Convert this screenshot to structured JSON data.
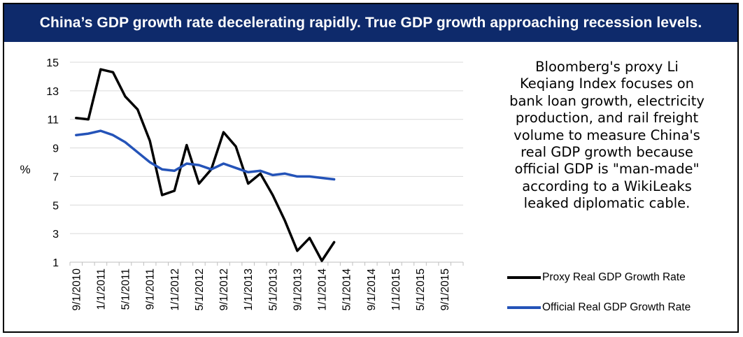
{
  "title": "China’s GDP growth rate decelerating rapidly. True GDP growth approaching recession levels.",
  "colors": {
    "title_background": "#0e2a6b",
    "proxy_line": "#000000",
    "official_line": "#2453b8",
    "gridline": "#d9d9d9"
  },
  "note": "Bloomberg's proxy Li Keqiang Index focuses on bank loan growth, electricity production, and rail freight volume to measure China's real GDP growth because official GDP is \"man-made\" according to a WikiLeaks leaked diplomatic cable.",
  "chart_data": {
    "type": "line",
    "title": "China’s GDP growth rate decelerating rapidly. True GDP growth approaching recession levels.",
    "ylabel": "%",
    "xlabel": "",
    "ylim": [
      1,
      15
    ],
    "yticks": [
      1,
      3,
      5,
      7,
      9,
      11,
      13,
      15
    ],
    "grid": true,
    "legend_position": "right",
    "x": [
      "9/1/2010",
      "11/1/2010",
      "1/1/2011",
      "3/1/2011",
      "5/1/2011",
      "7/1/2011",
      "9/1/2011",
      "11/1/2011",
      "1/1/2012",
      "3/1/2012",
      "5/1/2012",
      "7/1/2012",
      "9/1/2012",
      "11/1/2012",
      "1/1/2013",
      "3/1/2013",
      "5/1/2013",
      "7/1/2013",
      "9/1/2013",
      "11/1/2013",
      "1/1/2014",
      "3/1/2014",
      "5/1/2014",
      "7/1/2014",
      "9/1/2014",
      "11/1/2014",
      "1/1/2015",
      "3/1/2015",
      "5/1/2015",
      "7/1/2015",
      "9/1/2015",
      "11/1/2015"
    ],
    "x_tick_labels": [
      "9/1/2010",
      "1/1/2011",
      "5/1/2011",
      "9/1/2011",
      "1/1/2012",
      "5/1/2012",
      "9/1/2012",
      "1/1/2013",
      "5/1/2013",
      "9/1/2013",
      "1/1/2014",
      "5/1/2014",
      "9/1/2014",
      "1/1/2015",
      "5/1/2015",
      "9/1/2015"
    ],
    "series": [
      {
        "name": "Proxy Real GDP Growth Rate",
        "color": "#000000",
        "points": [
          {
            "x": "9/1/2010",
            "y": 11.1
          },
          {
            "x": "11/1/2010",
            "y": 11.0
          },
          {
            "x": "1/1/2011",
            "y": 14.5
          },
          {
            "x": "3/1/2011",
            "y": 14.3
          },
          {
            "x": "5/1/2011",
            "y": 12.6
          },
          {
            "x": "7/1/2011",
            "y": 11.7
          },
          {
            "x": "9/1/2011",
            "y": 9.5
          },
          {
            "x": "11/1/2011",
            "y": 5.7
          },
          {
            "x": "1/1/2012",
            "y": 6.0
          },
          {
            "x": "3/1/2012",
            "y": 9.2
          },
          {
            "x": "5/1/2012",
            "y": 6.5
          },
          {
            "x": "7/1/2012",
            "y": 7.5
          },
          {
            "x": "9/1/2012",
            "y": 10.1
          },
          {
            "x": "11/1/2012",
            "y": 9.1
          },
          {
            "x": "1/1/2013",
            "y": 6.5
          },
          {
            "x": "3/1/2013",
            "y": 7.2
          },
          {
            "x": "5/1/2013",
            "y": 5.7
          },
          {
            "x": "7/1/2013",
            "y": 3.9
          },
          {
            "x": "9/1/2013",
            "y": 1.8
          },
          {
            "x": "11/1/2013",
            "y": 2.7
          },
          {
            "x": "1/1/2014",
            "y": 1.1
          },
          {
            "x": "3/1/2014",
            "y": 2.4
          }
        ]
      },
      {
        "name": "Official Real GDP Growth Rate",
        "color": "#2453b8",
        "points": [
          {
            "x": "9/1/2010",
            "y": 9.9
          },
          {
            "x": "11/1/2010",
            "y": 10.0
          },
          {
            "x": "1/1/2011",
            "y": 10.2
          },
          {
            "x": "3/1/2011",
            "y": 9.9
          },
          {
            "x": "5/1/2011",
            "y": 9.4
          },
          {
            "x": "7/1/2011",
            "y": 8.7
          },
          {
            "x": "9/1/2011",
            "y": 8.0
          },
          {
            "x": "11/1/2011",
            "y": 7.5
          },
          {
            "x": "1/1/2012",
            "y": 7.4
          },
          {
            "x": "3/1/2012",
            "y": 7.9
          },
          {
            "x": "5/1/2012",
            "y": 7.8
          },
          {
            "x": "7/1/2012",
            "y": 7.5
          },
          {
            "x": "9/1/2012",
            "y": 7.9
          },
          {
            "x": "11/1/2012",
            "y": 7.6
          },
          {
            "x": "1/1/2013",
            "y": 7.3
          },
          {
            "x": "3/1/2013",
            "y": 7.4
          },
          {
            "x": "5/1/2013",
            "y": 7.1
          },
          {
            "x": "7/1/2013",
            "y": 7.2
          },
          {
            "x": "9/1/2013",
            "y": 7.0
          },
          {
            "x": "11/1/2013",
            "y": 7.0
          },
          {
            "x": "1/1/2014",
            "y": 6.9
          },
          {
            "x": "3/1/2014",
            "y": 6.8
          }
        ]
      }
    ]
  }
}
